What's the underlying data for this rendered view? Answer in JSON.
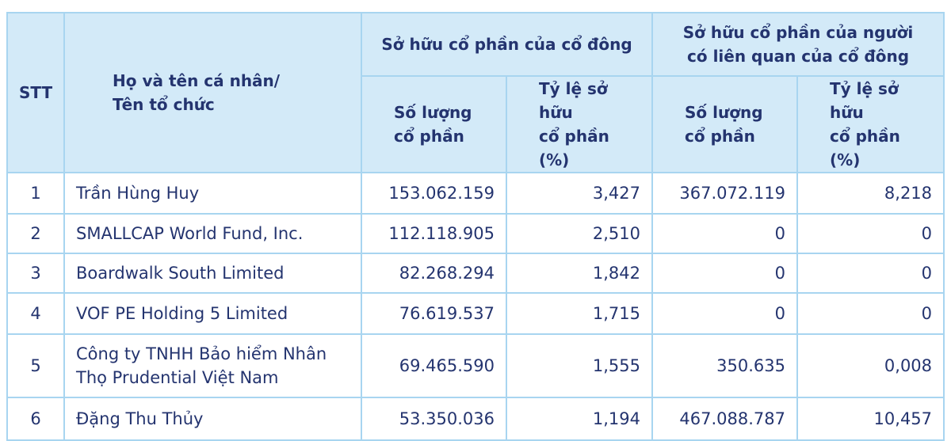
{
  "table": {
    "header": {
      "stt": "STT",
      "name": [
        "Họ và tên cá nhân/",
        "Tên tổ chức"
      ],
      "group1": "Sở hữu cổ phần của cổ đông",
      "group2": [
        "Sở hữu cổ phần của người",
        "có liên quan của cổ đông"
      ],
      "sub": [
        [
          "Số lượng",
          "cổ phần"
        ],
        [
          "Tỷ lệ sở hữu",
          "cổ phần (%)"
        ],
        [
          "Số lượng",
          "cổ phần"
        ],
        [
          "Tỷ lệ sở hữu",
          "cổ phần (%)"
        ]
      ]
    },
    "rows": [
      [
        "1",
        "Trần Hùng Huy",
        "153.062.159",
        "3,427",
        "367.072.119",
        "8,218"
      ],
      [
        "2",
        "SMALLCAP World Fund, Inc.",
        "112.118.905",
        "2,510",
        "0",
        "0"
      ],
      [
        "3",
        "Boardwalk South Limited",
        "82.268.294",
        "1,842",
        "0",
        "0"
      ],
      [
        "4",
        "VOF PE Holding 5 Limited",
        "76.619.537",
        "1,715",
        "0",
        "0"
      ],
      [
        "5",
        "Công ty TNHH Bảo hiểm Nhân Thọ Prudential Việt Nam",
        "69.465.590",
        "1,555",
        "350.635",
        "0,008"
      ],
      [
        "6",
        "Đặng Thu Thủy",
        "53.350.036",
        "1,194",
        "467.088.787",
        "10,457"
      ]
    ]
  }
}
